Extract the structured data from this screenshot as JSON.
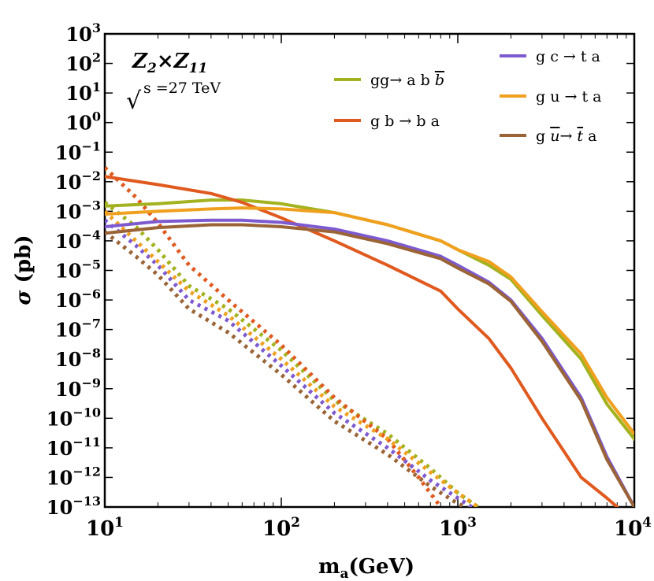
{
  "chart_data": {
    "type": "line",
    "xscale": "log",
    "yscale": "log",
    "xlim": [
      10,
      10000
    ],
    "ylim": [
      1e-13,
      1000
    ],
    "xlabel": "m",
    "xlabel_sub": "a",
    "xlabel_unit": "(GeV)",
    "ylabel_sym": "σ",
    "ylabel_unit": " (pb)",
    "x_ticks": [
      {
        "value": 10,
        "base": "10",
        "exp": "1"
      },
      {
        "value": 100,
        "base": "10",
        "exp": "2"
      },
      {
        "value": 1000,
        "base": "10",
        "exp": "3"
      },
      {
        "value": 10000,
        "base": "10",
        "exp": "4"
      }
    ],
    "y_ticks": [
      {
        "value": 1000,
        "base": "10",
        "exp": "3"
      },
      {
        "value": 100,
        "base": "10",
        "exp": "2"
      },
      {
        "value": 10,
        "base": "10",
        "exp": "1"
      },
      {
        "value": 1,
        "base": "10",
        "exp": "0"
      },
      {
        "value": 0.1,
        "base": "10",
        "exp": "−1"
      },
      {
        "value": 0.01,
        "base": "10",
        "exp": "−2"
      },
      {
        "value": 0.001,
        "base": "10",
        "exp": "−3"
      },
      {
        "value": 0.0001,
        "base": "10",
        "exp": "−4"
      },
      {
        "value": 1e-05,
        "base": "10",
        "exp": "−5"
      },
      {
        "value": 1e-06,
        "base": "10",
        "exp": "−6"
      },
      {
        "value": 1e-07,
        "base": "10",
        "exp": "−7"
      },
      {
        "value": 1e-08,
        "base": "10",
        "exp": "−8"
      },
      {
        "value": 1e-09,
        "base": "10",
        "exp": "−9"
      },
      {
        "value": 1e-10,
        "base": "10",
        "exp": "−10"
      },
      {
        "value": 1e-11,
        "base": "10",
        "exp": "−11"
      },
      {
        "value": 1e-12,
        "base": "10",
        "exp": "−12"
      },
      {
        "value": 1e-13,
        "base": "10",
        "exp": "−13"
      }
    ],
    "annotations": {
      "model_Z_1": "Z",
      "model_sub_1": "2",
      "model_times": "×",
      "model_Z_2": "Z",
      "model_sub_2": "11",
      "sqrt_symbol": "√",
      "energy_text": "s =27 TeV"
    },
    "series": [
      {
        "name": "gg→ a b b̄",
        "label_main": "gg→ a b ",
        "label_bar": "b",
        "color": "#a3b21e",
        "solid": [
          [
            10,
            0.0015
          ],
          [
            20,
            0.0018
          ],
          [
            40,
            0.0024
          ],
          [
            60,
            0.0024
          ],
          [
            100,
            0.0018
          ],
          [
            200,
            0.0009
          ],
          [
            400,
            0.00035
          ],
          [
            800,
            0.0001
          ],
          [
            1000,
            5e-05
          ],
          [
            1500,
            1.5e-05
          ],
          [
            2000,
            5e-06
          ],
          [
            3000,
            3e-07
          ],
          [
            5000,
            1e-08
          ],
          [
            7000,
            3e-10
          ],
          [
            10000,
            2e-11
          ]
        ],
        "dotted": [
          [
            10,
            0.002
          ],
          [
            15,
            0.0003
          ],
          [
            20,
            5e-05
          ],
          [
            30,
            3e-06
          ],
          [
            50,
            5e-07
          ],
          [
            100,
            2e-08
          ],
          [
            200,
            4e-10
          ],
          [
            400,
            3e-11
          ],
          [
            700,
            2e-12
          ],
          [
            1000,
            3e-13
          ],
          [
            1300,
            1e-13
          ]
        ]
      },
      {
        "name": "g b → b a",
        "label_main": "g b → b a",
        "label_bar": "",
        "color": "#e05a1f",
        "solid": [
          [
            10,
            0.015
          ],
          [
            20,
            0.008
          ],
          [
            40,
            0.004
          ],
          [
            60,
            0.002
          ],
          [
            100,
            0.0006
          ],
          [
            200,
            0.0001
          ],
          [
            400,
            1.5e-05
          ],
          [
            800,
            2e-06
          ],
          [
            1000,
            5e-07
          ],
          [
            1500,
            5e-08
          ],
          [
            2000,
            5e-09
          ],
          [
            3000,
            1e-10
          ],
          [
            5000,
            1e-12
          ],
          [
            7000,
            2e-13
          ],
          [
            8000,
            1e-13
          ]
        ],
        "dotted": [
          [
            10,
            0.03
          ],
          [
            15,
            0.003
          ],
          [
            20,
            0.0004
          ],
          [
            30,
            1.5e-05
          ],
          [
            50,
            1e-06
          ],
          [
            100,
            3e-08
          ],
          [
            200,
            5e-10
          ],
          [
            400,
            2e-11
          ],
          [
            600,
            1e-12
          ],
          [
            800,
            1e-13
          ]
        ]
      },
      {
        "name": "g c → t a",
        "label_main": "g c → t a",
        "label_bar": "",
        "color": "#7d5ad0",
        "solid": [
          [
            10,
            0.0003
          ],
          [
            20,
            0.00045
          ],
          [
            40,
            0.0005
          ],
          [
            60,
            0.0005
          ],
          [
            100,
            0.00042
          ],
          [
            200,
            0.00025
          ],
          [
            400,
            0.0001
          ],
          [
            800,
            3e-05
          ],
          [
            1000,
            1.5e-05
          ],
          [
            1500,
            4e-06
          ],
          [
            2000,
            1e-06
          ],
          [
            3000,
            5e-08
          ],
          [
            5000,
            5e-10
          ],
          [
            7000,
            5e-12
          ],
          [
            10000,
            1e-13
          ]
        ],
        "dotted": [
          [
            10,
            0.0005
          ],
          [
            15,
            7e-05
          ],
          [
            20,
            1.5e-05
          ],
          [
            30,
            1e-06
          ],
          [
            50,
            2e-07
          ],
          [
            100,
            6e-09
          ],
          [
            200,
            1.5e-10
          ],
          [
            400,
            1e-11
          ],
          [
            700,
            8e-13
          ],
          [
            1000,
            2e-13
          ],
          [
            1200,
            1e-13
          ]
        ]
      },
      {
        "name": "g u → t a",
        "label_main": "g u → t a",
        "label_bar": "",
        "color": "#f0a01e",
        "solid": [
          [
            10,
            0.0008
          ],
          [
            20,
            0.001
          ],
          [
            40,
            0.0012
          ],
          [
            60,
            0.0013
          ],
          [
            100,
            0.0012
          ],
          [
            200,
            0.0009
          ],
          [
            400,
            0.00035
          ],
          [
            800,
            0.0001
          ],
          [
            1000,
            5e-05
          ],
          [
            1500,
            2e-05
          ],
          [
            2000,
            6e-06
          ],
          [
            3000,
            4e-07
          ],
          [
            5000,
            1.5e-08
          ],
          [
            7000,
            5e-10
          ],
          [
            10000,
            3e-11
          ]
        ],
        "dotted": [
          [
            10,
            0.001
          ],
          [
            15,
            0.0001
          ],
          [
            20,
            2e-05
          ],
          [
            30,
            2e-06
          ],
          [
            50,
            3e-07
          ],
          [
            100,
            1e-08
          ],
          [
            200,
            2.5e-10
          ],
          [
            400,
            2e-11
          ],
          [
            700,
            1.5e-12
          ],
          [
            1000,
            3e-13
          ],
          [
            1300,
            1e-13
          ]
        ]
      },
      {
        "name": "g ū → t̄ a",
        "label_main": "g ",
        "label_bar": "u",
        "label_mid": "→ ",
        "label_bar2": "t",
        "label_end": " a",
        "color": "#9a6436",
        "solid": [
          [
            10,
            0.00018
          ],
          [
            20,
            0.00028
          ],
          [
            40,
            0.00035
          ],
          [
            60,
            0.00035
          ],
          [
            100,
            0.0003
          ],
          [
            200,
            0.0002
          ],
          [
            400,
            8e-05
          ],
          [
            800,
            2.5e-05
          ],
          [
            1000,
            1.2e-05
          ],
          [
            1500,
            3.5e-06
          ],
          [
            2000,
            9e-07
          ],
          [
            3000,
            4e-08
          ],
          [
            5000,
            4e-10
          ],
          [
            7000,
            4e-12
          ],
          [
            10000,
            1e-13
          ]
        ],
        "dotted": [
          [
            10,
            0.0002
          ],
          [
            15,
            3e-05
          ],
          [
            20,
            7e-06
          ],
          [
            30,
            5e-07
          ],
          [
            50,
            8e-08
          ],
          [
            100,
            3e-09
          ],
          [
            200,
            8e-11
          ],
          [
            400,
            6e-12
          ],
          [
            700,
            5e-13
          ],
          [
            1000,
            1.3e-13
          ],
          [
            1100,
            1e-13
          ]
        ]
      }
    ]
  }
}
